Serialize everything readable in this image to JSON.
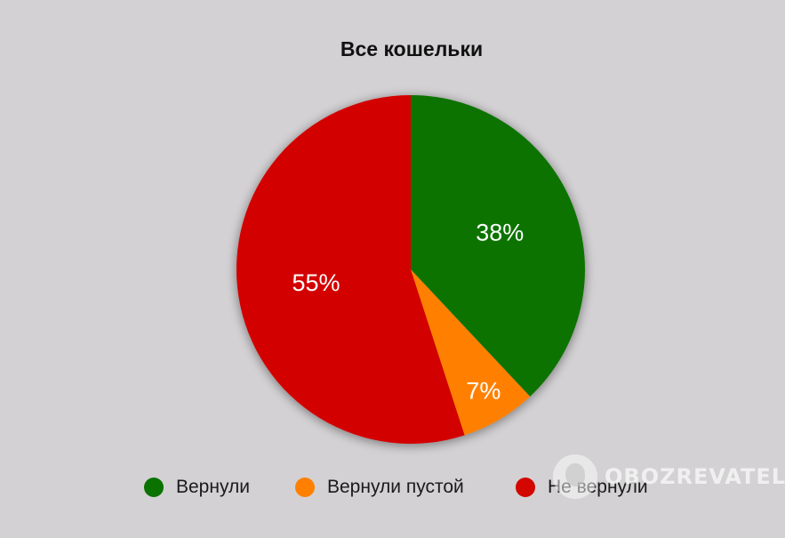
{
  "chart_data": {
    "type": "pie",
    "title": "Все кошельки",
    "categories": [
      "Вернули",
      "Вернули пустой",
      "Не вернули"
    ],
    "values": [
      38,
      7,
      55
    ],
    "value_labels": [
      "38%",
      "7%",
      "55%"
    ],
    "colors": [
      "#0a7300",
      "#ff8000",
      "#d30600"
    ],
    "legend_position": "bottom"
  },
  "watermark": {
    "text": "OBOZREVATEL"
  }
}
